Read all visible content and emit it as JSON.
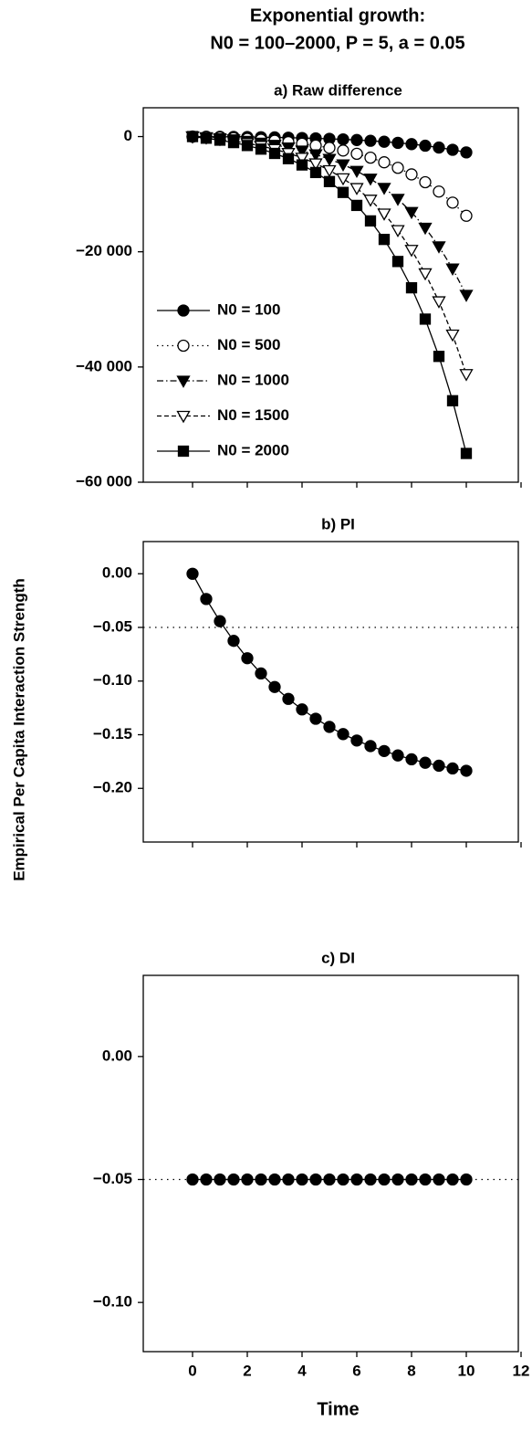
{
  "figure": {
    "title": [
      "Exponential growth:",
      "N0 = 100–2000, P = 5, a = 0.05"
    ],
    "ylabel": "Empirical Per Capita Interaction Strength"
  },
  "chart_data": [
    {
      "type": "line",
      "title": "a) Raw difference",
      "x": [
        0,
        0.5,
        1,
        1.5,
        2,
        2.5,
        3,
        3.5,
        4,
        4.5,
        5,
        5.5,
        6,
        6.5,
        7,
        7.5,
        8,
        8.5,
        9,
        9.5,
        10
      ],
      "xlim": [
        -1.8,
        11.9
      ],
      "xticks": [
        0,
        2,
        4,
        6,
        8,
        10,
        12
      ],
      "ylim": [
        -60000,
        5000
      ],
      "yticks": [
        0,
        {
          "value": -20000,
          "label": "−20 000"
        },
        {
          "value": -40000,
          "label": "−40 000"
        },
        {
          "value": -60000,
          "label": "−60 000"
        }
      ],
      "legend": "lower left",
      "series": [
        {
          "name": "N0 = 100",
          "color": "#000",
          "marker": "circle",
          "filled": true,
          "linestyle": "solid",
          "values": [
            0,
            -14,
            -31,
            -52,
            -78,
            -109,
            -146,
            -192,
            -246,
            -312,
            -391,
            -485,
            -597,
            -732,
            -893,
            -1084,
            -1313,
            -1584,
            -1908,
            -2293,
            -2750
          ]
        },
        {
          "name": "N0 = 500",
          "color": "#000",
          "marker": "circle",
          "filled": false,
          "linestyle": "dotted",
          "values": [
            0,
            -70,
            -155,
            -260,
            -388,
            -544,
            -732,
            -958,
            -1231,
            -1559,
            -1953,
            -2424,
            -2987,
            -3660,
            -4464,
            -5422,
            -6563,
            -7922,
            -9540,
            -11465,
            -13752
          ]
        },
        {
          "name": "N0 = 1000",
          "color": "#000",
          "marker": "triangle-down",
          "filled": true,
          "linestyle": "dashdot",
          "values": [
            0,
            -139,
            -311,
            -521,
            -777,
            -1087,
            -1463,
            -1917,
            -2463,
            -3119,
            -3906,
            -4848,
            -5975,
            -7321,
            -8927,
            -10843,
            -13126,
            -15844,
            -19080,
            -22929,
            -27504
          ]
        },
        {
          "name": "N0 = 1500",
          "color": "#000",
          "marker": "triangle-down",
          "filled": false,
          "linestyle": "dashed",
          "values": [
            0,
            -209,
            -466,
            -781,
            -1165,
            -1631,
            -2195,
            -2875,
            -3694,
            -4678,
            -5858,
            -7272,
            -8962,
            -10981,
            -13391,
            -16265,
            -19689,
            -23766,
            -28620,
            -34394,
            -41256
          ]
        },
        {
          "name": "N0 = 2000",
          "color": "#000",
          "marker": "square",
          "filled": true,
          "linestyle": "solid",
          "values": [
            0,
            -279,
            -621,
            -1042,
            -1553,
            -2175,
            -2926,
            -3834,
            -4926,
            -6238,
            -7811,
            -9696,
            -11949,
            -14641,
            -17855,
            -21686,
            -26252,
            -31688,
            -38160,
            -45858,
            -55008
          ]
        }
      ]
    },
    {
      "type": "line",
      "title": "b) PI",
      "x": [
        0,
        0.5,
        1,
        1.5,
        2,
        2.5,
        3,
        3.5,
        4,
        4.5,
        5,
        5.5,
        6,
        6.5,
        7,
        7.5,
        8,
        8.5,
        9,
        9.5,
        10
      ],
      "xlim": [
        -1.8,
        11.9
      ],
      "xticks": [
        0,
        2,
        4,
        6,
        8,
        10,
        12
      ],
      "ylim": [
        -0.25,
        0.03
      ],
      "yticks": [
        {
          "value": 0,
          "label": "0.00"
        },
        {
          "value": -0.05,
          "label": "−0.05"
        },
        {
          "value": -0.1,
          "label": "−0.10"
        },
        {
          "value": -0.15,
          "label": "−0.15"
        },
        {
          "value": -0.2,
          "label": "−0.20"
        }
      ],
      "hline": -0.05,
      "series": [
        {
          "color": "#000",
          "marker": "circle",
          "filled": true,
          "linestyle": "solid",
          "values": [
            0,
            -0.0235,
            -0.0442,
            -0.0625,
            -0.0787,
            -0.0929,
            -0.1055,
            -0.1166,
            -0.1264,
            -0.1351,
            -0.1427,
            -0.1494,
            -0.1554,
            -0.1606,
            -0.1652,
            -0.1693,
            -0.1729,
            -0.1761,
            -0.1789,
            -0.1814,
            -0.1836
          ]
        }
      ]
    },
    {
      "type": "line",
      "title": "c) DI",
      "xlabel": "Time",
      "x": [
        0,
        0.5,
        1,
        1.5,
        2,
        2.5,
        3,
        3.5,
        4,
        4.5,
        5,
        5.5,
        6,
        6.5,
        7,
        7.5,
        8,
        8.5,
        9,
        9.5,
        10
      ],
      "xlim": [
        -1.8,
        11.9
      ],
      "xticks": [
        0,
        2,
        4,
        6,
        8,
        10,
        12
      ],
      "ylim": [
        -0.12,
        0.033
      ],
      "yticks": [
        {
          "value": 0,
          "label": "0.00"
        },
        {
          "value": -0.05,
          "label": "−0.05"
        },
        {
          "value": -0.1,
          "label": "−0.10"
        }
      ],
      "hline": -0.05,
      "series": [
        {
          "color": "#000",
          "marker": "circle",
          "filled": true,
          "linestyle": "solid",
          "values": [
            -0.05,
            -0.05,
            -0.05,
            -0.05,
            -0.05,
            -0.05,
            -0.05,
            -0.05,
            -0.05,
            -0.05,
            -0.05,
            -0.05,
            -0.05,
            -0.05,
            -0.05,
            -0.05,
            -0.05,
            -0.05,
            -0.05,
            -0.05,
            -0.05
          ]
        }
      ]
    }
  ]
}
